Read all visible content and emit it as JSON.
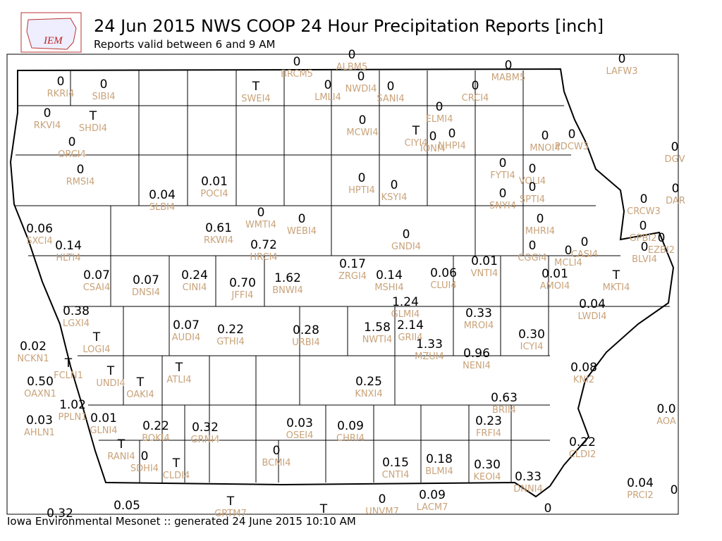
{
  "header": {
    "logo_text": "IEM",
    "title": "24 Jun 2015 NWS COOP 24 Hour Precipitation Reports [inch]",
    "subtitle": "Reports valid between 6 and 9 AM"
  },
  "footer": "Iowa Environmental Mesonet :: generated 24 June 2015 10:10 AM",
  "stations": [
    {
      "value": "0",
      "id": "RKRI4"
    },
    {
      "value": "0",
      "id": "SIBI4"
    },
    {
      "value": "T",
      "id": "SWEI4"
    },
    {
      "value": "0",
      "id": "BRCM5"
    },
    {
      "value": "0",
      "id": "ALBM5"
    },
    {
      "value": "0",
      "id": "LMLI4"
    },
    {
      "value": "0",
      "id": "NWDI4"
    },
    {
      "value": "0",
      "id": "SANI4"
    },
    {
      "value": "0",
      "id": "CRCI4"
    },
    {
      "value": "0",
      "id": "MABM5"
    },
    {
      "value": "0",
      "id": "LAFW3"
    },
    {
      "value": "0",
      "id": "RKVI4"
    },
    {
      "value": "T",
      "id": "SHDI4"
    },
    {
      "value": "0",
      "id": "ELMI4"
    },
    {
      "value": "0",
      "id": "MCWI4"
    },
    {
      "value": "T",
      "id": "CIYI4"
    },
    {
      "value": "0",
      "id": "IONI4"
    },
    {
      "value": "0",
      "id": "NHPI4"
    },
    {
      "value": "0",
      "id": "MNOI4"
    },
    {
      "value": "0",
      "id": "PDCW3"
    },
    {
      "value": "0",
      "id": "DGV"
    },
    {
      "value": "0",
      "id": "ORCI4"
    },
    {
      "value": "0",
      "id": "RMSI4"
    },
    {
      "value": "0.01",
      "id": "POCI4"
    },
    {
      "value": "0",
      "id": "HPTI4"
    },
    {
      "value": "0",
      "id": "KSYI4"
    },
    {
      "value": "0",
      "id": "FYTI4"
    },
    {
      "value": "0",
      "id": "VOLI4"
    },
    {
      "value": "0",
      "id": "SNYI4"
    },
    {
      "value": "0",
      "id": "SPTI4"
    },
    {
      "value": "0",
      "id": "CRCW3"
    },
    {
      "value": "0",
      "id": "DAR"
    },
    {
      "value": "0.04",
      "id": "SLBI4"
    },
    {
      "value": "0",
      "id": "WMTI4"
    },
    {
      "value": "0",
      "id": "WEBI4"
    },
    {
      "value": "0.06",
      "id": "SXCI4"
    },
    {
      "value": "0.61",
      "id": "RKWI4"
    },
    {
      "value": "0",
      "id": "GNDI4"
    },
    {
      "value": "0",
      "id": "MHRI4"
    },
    {
      "value": "0",
      "id": "GPBI2"
    },
    {
      "value": "0",
      "id": "EZBI2"
    },
    {
      "value": "0.14",
      "id": "HLTI4"
    },
    {
      "value": "0.72",
      "id": "HRCI4"
    },
    {
      "value": "0",
      "id": "CGGI4"
    },
    {
      "value": "0",
      "id": "MCLI4"
    },
    {
      "value": "0",
      "id": "CASI4"
    },
    {
      "value": "0",
      "id": "BLVI4"
    },
    {
      "value": "0.17",
      "id": "ZRGI4"
    },
    {
      "value": "0.01",
      "id": "VNTI4"
    },
    {
      "value": "0.07",
      "id": "CSAI4"
    },
    {
      "value": "0.07",
      "id": "DNSI4"
    },
    {
      "value": "0.24",
      "id": "CINI4"
    },
    {
      "value": "0.70",
      "id": "JFFI4"
    },
    {
      "value": "1.62",
      "id": "BNWI4"
    },
    {
      "value": "0.14",
      "id": "MSHI4"
    },
    {
      "value": "0.06",
      "id": "CLUI4"
    },
    {
      "value": "0.01",
      "id": "AMOI4"
    },
    {
      "value": "T",
      "id": "MKTI4"
    },
    {
      "value": "0.38",
      "id": "LGXI4"
    },
    {
      "value": "1.24",
      "id": "GLMI4"
    },
    {
      "value": "0.33",
      "id": "MROI4"
    },
    {
      "value": "0.04",
      "id": "LWDI4"
    },
    {
      "value": "0.07",
      "id": "AUDI4"
    },
    {
      "value": "0.22",
      "id": "GTHI4"
    },
    {
      "value": "0.28",
      "id": "URBI4"
    },
    {
      "value": "1.58",
      "id": "NWTI4"
    },
    {
      "value": "2.14",
      "id": "GRII4"
    },
    {
      "value": "0.30",
      "id": "ICYI4"
    },
    {
      "value": "T",
      "id": "LOGI4"
    },
    {
      "value": "0.02",
      "id": "NCKN1"
    },
    {
      "value": "1.33",
      "id": "MZUI4"
    },
    {
      "value": "0.96",
      "id": "NENI4"
    },
    {
      "value": "T",
      "id": "FCLN1"
    },
    {
      "value": "T",
      "id": "UNDI4"
    },
    {
      "value": "T",
      "id": "OAKI4"
    },
    {
      "value": "T",
      "id": "ATLI4"
    },
    {
      "value": "0.08",
      "id": "KNI2"
    },
    {
      "value": "0.50",
      "id": "OAXN1"
    },
    {
      "value": "0.25",
      "id": "KNXI4"
    },
    {
      "value": "0.63",
      "id": "BRII4"
    },
    {
      "value": "1.02",
      "id": "PPLN1"
    },
    {
      "value": "0.0",
      "id": "AOA"
    },
    {
      "value": "0.03",
      "id": "AHLN1"
    },
    {
      "value": "0.01",
      "id": "GLNI4"
    },
    {
      "value": "0.22",
      "id": "BOKI4"
    },
    {
      "value": "0.32",
      "id": "GRNI4"
    },
    {
      "value": "0.03",
      "id": "OSEI4"
    },
    {
      "value": "0.09",
      "id": "CHRI4"
    },
    {
      "value": "0.23",
      "id": "FRFI4"
    },
    {
      "value": "0.22",
      "id": "CLDI2"
    },
    {
      "value": "T",
      "id": "RANI4"
    },
    {
      "value": "0",
      "id": "SDHI4"
    },
    {
      "value": "0",
      "id": "BCMI4"
    },
    {
      "value": "T",
      "id": "CLDI4"
    },
    {
      "value": "0.15",
      "id": "CNTI4"
    },
    {
      "value": "0.18",
      "id": "BLMI4"
    },
    {
      "value": "0.30",
      "id": "KEOI4"
    },
    {
      "value": "0.33",
      "id": "DNNI4"
    },
    {
      "value": "0.04",
      "id": "PRCI2"
    },
    {
      "value": "0"
    },
    {
      "value": "0.05"
    },
    {
      "value": "T",
      "id": "GRTM7"
    },
    {
      "value": "T"
    },
    {
      "value": "0",
      "id": "UNVM7"
    },
    {
      "value": "0.09",
      "id": "LACM7"
    },
    {
      "value": "0"
    },
    {
      "value": "0.32"
    }
  ]
}
